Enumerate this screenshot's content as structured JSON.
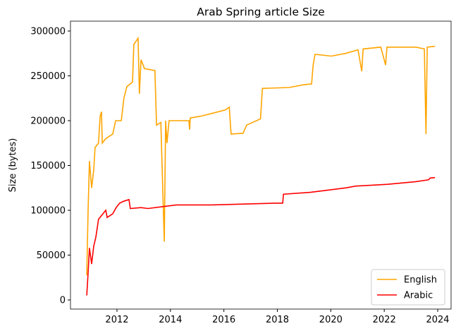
{
  "chart_data": {
    "type": "line",
    "title": "Arab Spring article Size",
    "ylabel": "Size (bytes)",
    "xlim": [
      2010.26,
      2024.5
    ],
    "xticks": [
      2012,
      2014,
      2016,
      2018,
      2020,
      2022,
      2024
    ],
    "ylim": [
      -10200,
      311000
    ],
    "yticks": [
      0,
      50000,
      100000,
      150000,
      200000,
      250000,
      300000
    ],
    "legend": "lower right",
    "series": [
      {
        "name": "English",
        "color": "#ffa500",
        "x": [
          2010.87,
          2010.92,
          2010.97,
          2011.05,
          2011.13,
          2011.18,
          2011.31,
          2011.37,
          2011.42,
          2011.45,
          2011.58,
          2011.84,
          2011.95,
          2012.16,
          2012.26,
          2012.37,
          2012.58,
          2012.63,
          2012.79,
          2012.84,
          2012.9,
          2013.03,
          2013.42,
          2013.48,
          2013.64,
          2013.77,
          2013.82,
          2013.87,
          2013.95,
          2014.69,
          2014.72,
          2014.74,
          2015.14,
          2015.54,
          2016.06,
          2016.2,
          2016.27,
          2016.72,
          2016.85,
          2017.37,
          2017.44,
          2018.44,
          2018.97,
          2019.28,
          2019.34,
          2019.41,
          2020.02,
          2020.55,
          2021.02,
          2021.16,
          2021.21,
          2021.87,
          2022.05,
          2022.1,
          2023.19,
          2023.5,
          2023.56,
          2023.61,
          2023.9
        ],
        "values": [
          27500,
          100000,
          155000,
          125000,
          145000,
          170000,
          175000,
          205000,
          210000,
          175000,
          180000,
          185000,
          200000,
          200000,
          225000,
          238000,
          243000,
          285000,
          292000,
          230000,
          268000,
          258000,
          256000,
          195000,
          198000,
          65000,
          200000,
          175000,
          200000,
          200000,
          190000,
          203000,
          205000,
          208000,
          212000,
          215000,
          185000,
          186000,
          195000,
          202000,
          236000,
          237000,
          240000,
          241000,
          262000,
          274000,
          272000,
          275000,
          279000,
          255000,
          280000,
          282000,
          262000,
          282000,
          282000,
          280000,
          185000,
          282000,
          283000
        ]
      },
      {
        "name": "Arabic",
        "color": "#ff0000",
        "x": [
          2010.87,
          2010.92,
          2010.97,
          2011.05,
          2011.13,
          2011.21,
          2011.31,
          2011.5,
          2011.58,
          2011.63,
          2011.84,
          2011.97,
          2012.1,
          2012.24,
          2012.45,
          2012.5,
          2012.9,
          2013.16,
          2013.69,
          2014.22,
          2015.54,
          2016.85,
          2017.91,
          2018.2,
          2018.23,
          2019.23,
          2019.76,
          2020.55,
          2020.94,
          2022.13,
          2023.19,
          2023.66,
          2023.72,
          2023.9
        ],
        "values": [
          5000,
          30000,
          58000,
          40000,
          60000,
          70000,
          90000,
          97000,
          100000,
          92000,
          96000,
          103000,
          108000,
          110000,
          112000,
          102000,
          103000,
          102000,
          104000,
          106000,
          106000,
          107000,
          108000,
          108000,
          118000,
          120000,
          122000,
          125000,
          127000,
          129000,
          132000,
          134000,
          136000,
          136500
        ]
      }
    ]
  }
}
